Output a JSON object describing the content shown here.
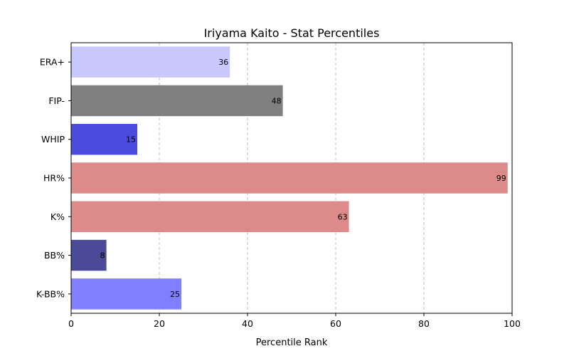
{
  "chart_data": {
    "type": "bar",
    "orientation": "horizontal",
    "title": "Iriyama Kaito - Stat Percentiles",
    "xlabel": "Percentile Rank",
    "ylabel": "",
    "xlim": [
      0,
      100
    ],
    "xticks": [
      0,
      20,
      40,
      60,
      80,
      100
    ],
    "grid": "x-dashed",
    "categories": [
      "ERA+",
      "FIP-",
      "WHIP",
      "HR%",
      "K%",
      "BB%",
      "K-BB%"
    ],
    "values": [
      36,
      48,
      15,
      99,
      63,
      8,
      25
    ],
    "colors": [
      "#c8c8ff",
      "#808080",
      "#4b4bde",
      "#dc8a8a",
      "#dc8a8a",
      "#4a4a96",
      "#8080ff"
    ]
  }
}
